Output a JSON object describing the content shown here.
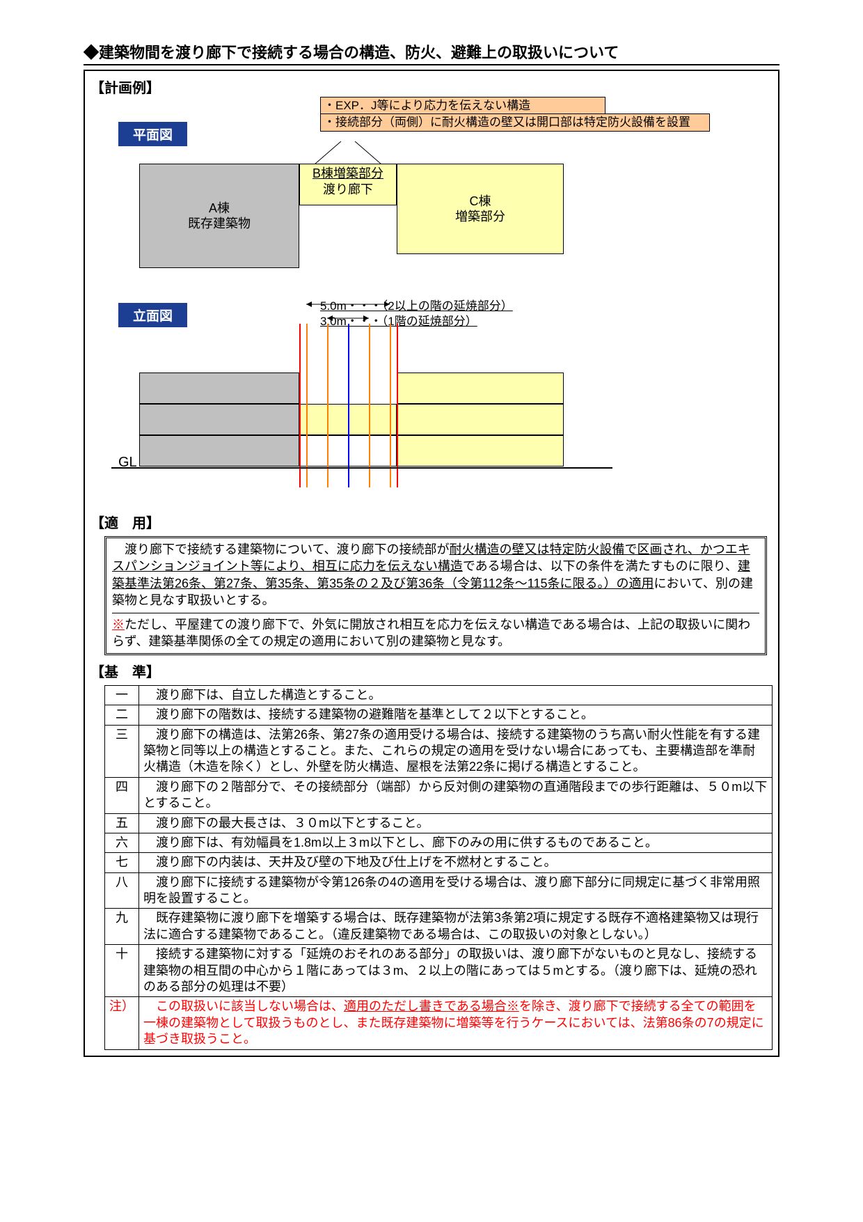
{
  "title": "◆建築物間を渡り廊下で接続する場合の構造、防火、避難上の取扱いについて",
  "sections": {
    "plan_example": "【計画例】",
    "plan_label": "平面図",
    "elev_label": "立面図",
    "tekiyo": "【適　用】",
    "kijun": "【基　準】",
    "gl": "GL"
  },
  "notes": {
    "exp": "・EXP．J等により応力を伝えない構造",
    "firewall": "・接続部分（両側）に耐火構造の壁又は開口部は特定防火設備を設置"
  },
  "plan": {
    "boxA": {
      "title": "A棟",
      "sub": "既存建築物",
      "bg": "#c0c0c0"
    },
    "boxB": {
      "title": "B棟増築部分",
      "sub": "渡り廊下",
      "bg": "#ffffb0"
    },
    "boxC": {
      "title": "C棟",
      "sub": "増築部分",
      "bg": "#ffffb0"
    }
  },
  "elev": {
    "dim5": "5.0m・・・（2以上の階の延焼部分）",
    "dim3": "3.0m・・・（1階の延焼部分）",
    "line_colors": {
      "edge_red": "#ff0000",
      "center_blue": "#0000ff",
      "yaki_orange": "#ff8000"
    }
  },
  "tekiyo_para1": "　渡り廊下で接続する建築物について、渡り廊下の接続部が<span class='uline'>耐火構造の壁又は特定防火設備で区画され、かつエキスパンションジョイント等により、相互に応力を伝えない構造</span>である場合は、以下の条件を満たすものに限り、<span class='uline'>建築基準法第26条、第27条、第35条、第35条の２及び第36条（令第112条～115条に限る。）の適用</span>において、別の建築物と見なす取扱いとする。",
  "tekiyo_para2": "<span class='red uline'>※</span>ただし、平屋建ての渡り廊下で、外気に開放され相互を応力を伝えない構造である場合は、上記の取扱いに関わらず、建築基準関係の全ての規定の適用において別の建築物と見なす。",
  "criteria": [
    {
      "num": "一",
      "text": "　渡り廊下は、自立した構造とすること。"
    },
    {
      "num": "二",
      "text": "　渡り廊下の階数は、接続する建築物の避難階を基準として２以下とすること。"
    },
    {
      "num": "三",
      "text": "　渡り廊下の構造は、法第26条、第27条の適用受ける場合は、接続する建築物のうち高い耐火性能を有する建築物と同等以上の構造とすること。また、これらの規定の適用を受けない場合にあっても、主要構造部を準耐火構造（木造を除く）とし、外壁を防火構造、屋根を法第22条に掲げる構造とすること。"
    },
    {
      "num": "四",
      "text": "　渡り廊下の２階部分で、その接続部分（端部）から反対側の建築物の直通階段までの歩行距離は、５０m以下とすること。"
    },
    {
      "num": "五",
      "text": "　渡り廊下の最大長さは、３０m以下とすること。"
    },
    {
      "num": "六",
      "text": "　渡り廊下は、有効幅員を1.8m以上３m以下とし、廊下のみの用に供するものであること。"
    },
    {
      "num": "七",
      "text": "　渡り廊下の内装は、天井及び壁の下地及び仕上げを不燃材とすること。"
    },
    {
      "num": "八",
      "text": "　渡り廊下に接続する建築物が令第126条の4の適用を受ける場合は、渡り廊下部分に同規定に基づく非常用照明を設置すること。"
    },
    {
      "num": "九",
      "text": "　既存建築物に渡り廊下を増築する場合は、既存建築物が法第3条第2項に規定する既存不適格建築物又は現行法に適合する建築物であること。（違反建築物である場合は、この取扱いの対象としない。）"
    },
    {
      "num": "十",
      "text": "　接続する建築物に対する「延焼のおそれのある部分」の取扱いは、渡り廊下がないものと見なし、接続する建築物の相互間の中心から１階にあっては３m、２以上の階にあっては５mとする。（渡り廊下は、延焼の恐れのある部分の処理は不要）"
    }
  ],
  "criteria_note": "　この取扱いに該当しない場合は、<span class='uline'>適用のただし書きである場合</span><span class='red uline'>※</span>を除き、渡り廊下で接続する全ての範囲を一棟の建築物として取扱うものとし、また既存建築物に増築等を行うケースにおいては、法第86条の7の規定に基づき取扱うこと。",
  "criteria_note_label": "注）"
}
